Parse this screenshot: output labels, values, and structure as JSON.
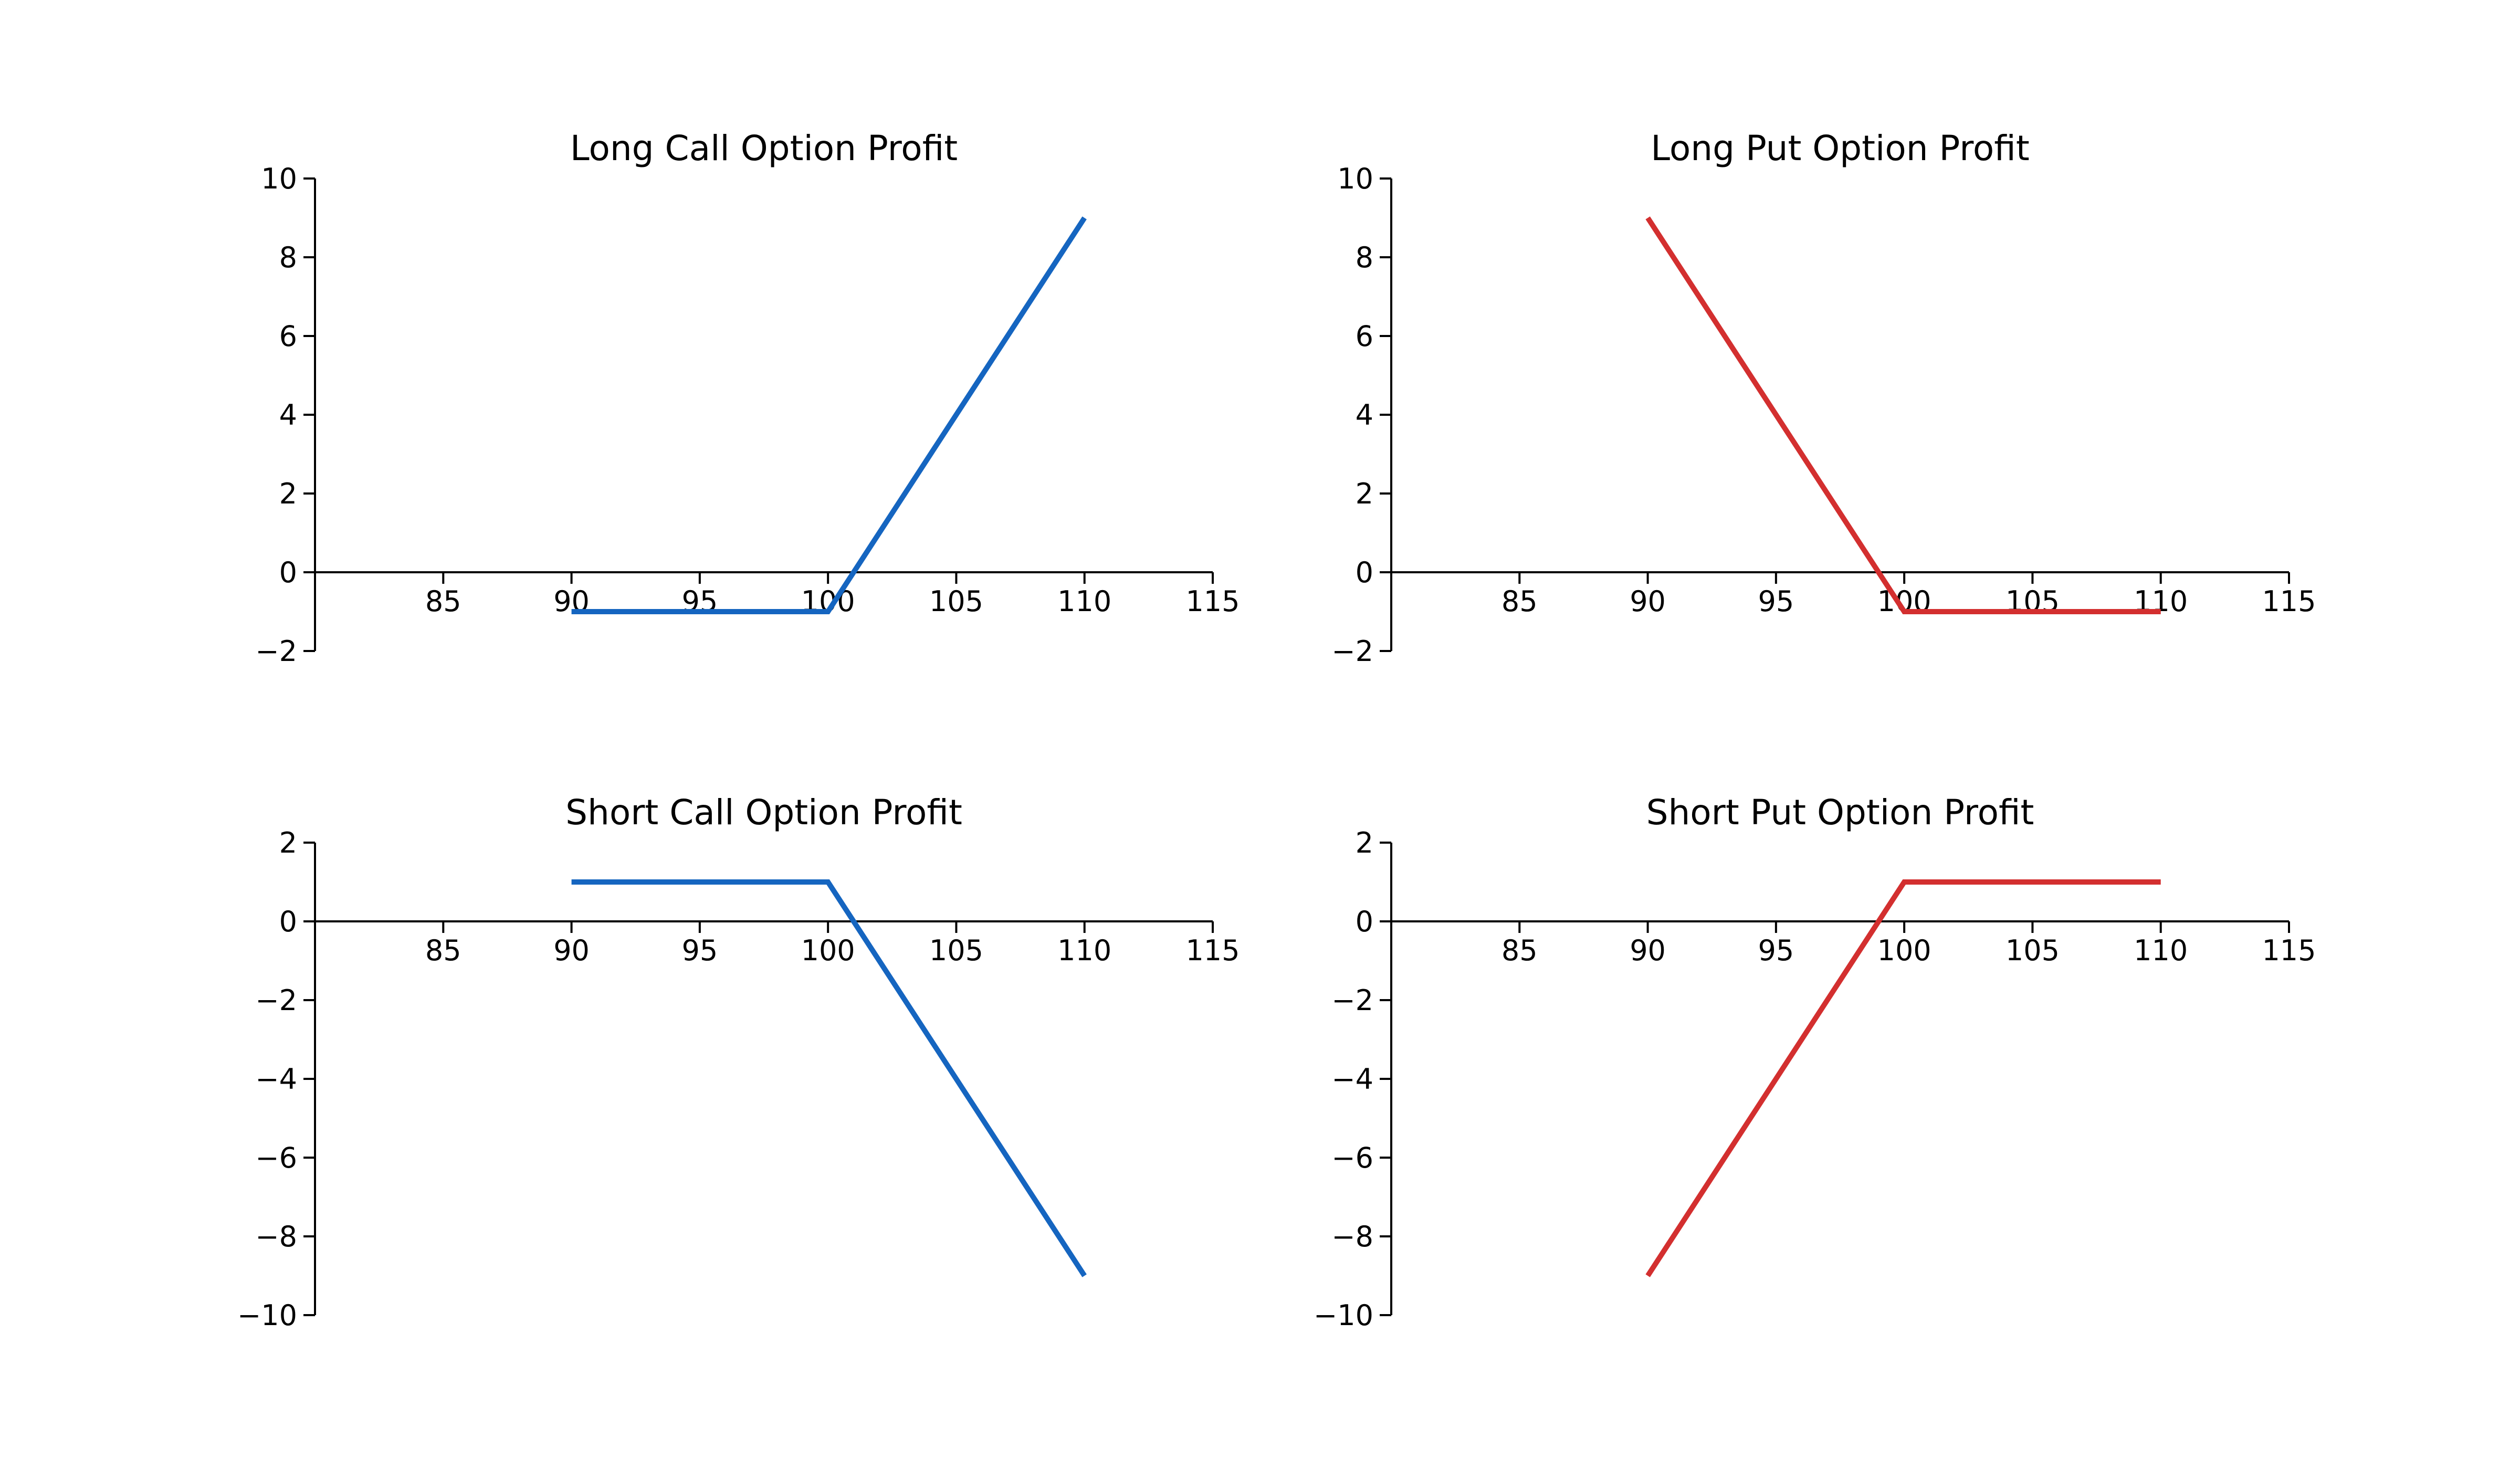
{
  "chart_data": [
    {
      "type": "line",
      "title": "Long Call Option Profit",
      "xlabel": "",
      "ylabel": "",
      "xlim": [
        80,
        115
      ],
      "ylim": [
        -2,
        10
      ],
      "xticks": [
        85,
        90,
        95,
        100,
        105,
        110,
        115
      ],
      "yticks": [
        -2,
        0,
        2,
        4,
        6,
        8,
        10
      ],
      "xtick_labels": [
        "85",
        "90",
        "95",
        "100",
        "105",
        "110",
        "115"
      ],
      "ytick_labels": [
        "−2",
        "0",
        "2",
        "4",
        "6",
        "8",
        "10"
      ],
      "x_axis_at": 0,
      "grid": false,
      "series": [
        {
          "color": "#1565c0",
          "x": [
            90,
            100,
            110
          ],
          "y": [
            -1,
            -1,
            9
          ]
        }
      ]
    },
    {
      "type": "line",
      "title": "Long Put Option Profit",
      "xlabel": "",
      "ylabel": "",
      "xlim": [
        80,
        115
      ],
      "ylim": [
        -2,
        10
      ],
      "xticks": [
        85,
        90,
        95,
        100,
        105,
        110,
        115
      ],
      "yticks": [
        -2,
        0,
        2,
        4,
        6,
        8,
        10
      ],
      "xtick_labels": [
        "85",
        "90",
        "95",
        "100",
        "105",
        "110",
        "115"
      ],
      "ytick_labels": [
        "−2",
        "0",
        "2",
        "4",
        "6",
        "8",
        "10"
      ],
      "x_axis_at": 0,
      "grid": false,
      "series": [
        {
          "color": "#d32f2f",
          "x": [
            90,
            100,
            110
          ],
          "y": [
            9,
            -1,
            -1
          ]
        }
      ]
    },
    {
      "type": "line",
      "title": "Short Call Option Profit",
      "xlabel": "",
      "ylabel": "",
      "xlim": [
        80,
        115
      ],
      "ylim": [
        -10,
        2
      ],
      "xticks": [
        85,
        90,
        95,
        100,
        105,
        110,
        115
      ],
      "yticks": [
        -10,
        -8,
        -6,
        -4,
        -2,
        0,
        2
      ],
      "xtick_labels": [
        "85",
        "90",
        "95",
        "100",
        "105",
        "110",
        "115"
      ],
      "ytick_labels": [
        "−10",
        "−8",
        "−6",
        "−4",
        "−2",
        "0",
        "2"
      ],
      "x_axis_at": 0,
      "grid": false,
      "series": [
        {
          "color": "#1565c0",
          "x": [
            90,
            100,
            110
          ],
          "y": [
            1,
            1,
            -9
          ]
        }
      ]
    },
    {
      "type": "line",
      "title": "Short Put Option Profit",
      "xlabel": "",
      "ylabel": "",
      "xlim": [
        80,
        115
      ],
      "ylim": [
        -10,
        2
      ],
      "xticks": [
        85,
        90,
        95,
        100,
        105,
        110,
        115
      ],
      "yticks": [
        -10,
        -8,
        -6,
        -4,
        -2,
        0,
        2
      ],
      "xtick_labels": [
        "85",
        "90",
        "95",
        "100",
        "105",
        "110",
        "115"
      ],
      "ytick_labels": [
        "−10",
        "−8",
        "−6",
        "−4",
        "−2",
        "0",
        "2"
      ],
      "x_axis_at": 0,
      "grid": false,
      "series": [
        {
          "color": "#d32f2f",
          "x": [
            90,
            100,
            110
          ],
          "y": [
            -9,
            1,
            1
          ]
        }
      ]
    }
  ]
}
